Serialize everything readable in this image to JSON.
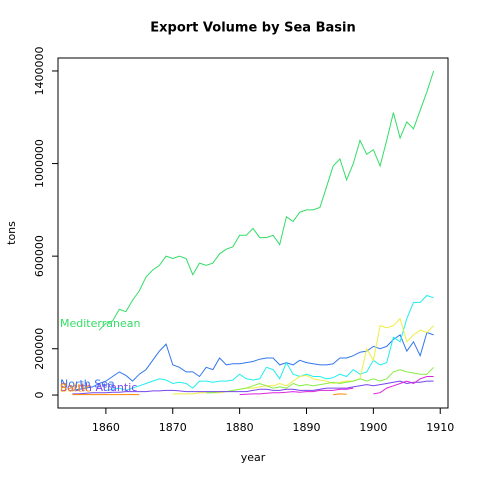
{
  "chart_data": {
    "type": "line",
    "title": "Export Volume by Sea Basin",
    "x_label": "year",
    "y_label": "tons",
    "x": [
      1855,
      1856,
      1857,
      1858,
      1859,
      1860,
      1861,
      1862,
      1863,
      1864,
      1865,
      1866,
      1867,
      1868,
      1869,
      1870,
      1871,
      1872,
      1873,
      1874,
      1875,
      1876,
      1877,
      1878,
      1879,
      1880,
      1881,
      1882,
      1883,
      1884,
      1885,
      1886,
      1887,
      1888,
      1889,
      1890,
      1891,
      1892,
      1893,
      1894,
      1895,
      1896,
      1897,
      1898,
      1899,
      1900,
      1901,
      1902,
      1903,
      1904,
      1905,
      1906,
      1907,
      1908,
      1909
    ],
    "series": [
      {
        "name": "Mediterranean",
        "color": "#33dd66",
        "values": [
          null,
          null,
          null,
          null,
          280000,
          310000,
          320000,
          370000,
          360000,
          410000,
          450000,
          510000,
          540000,
          560000,
          600000,
          590000,
          600000,
          590000,
          520000,
          570000,
          560000,
          570000,
          610000,
          630000,
          640000,
          690000,
          690000,
          720000,
          680000,
          680000,
          690000,
          650000,
          770000,
          750000,
          790000,
          800000,
          800000,
          810000,
          900000,
          990000,
          1020000,
          930000,
          1000000,
          1100000,
          1040000,
          1060000,
          990000,
          1100000,
          1220000,
          1110000,
          1180000,
          1150000,
          1230000,
          1310000,
          1400000
        ]
      },
      {
        "name": "North Sea",
        "color": "#3377ee",
        "values": [
          20000,
          25000,
          30000,
          35000,
          50000,
          60000,
          80000,
          100000,
          85000,
          60000,
          90000,
          110000,
          150000,
          190000,
          220000,
          130000,
          120000,
          100000,
          100000,
          80000,
          120000,
          110000,
          160000,
          130000,
          135000,
          135000,
          140000,
          145000,
          155000,
          160000,
          160000,
          130000,
          140000,
          130000,
          150000,
          140000,
          135000,
          130000,
          130000,
          135000,
          160000,
          160000,
          170000,
          185000,
          190000,
          210000,
          200000,
          210000,
          240000,
          260000,
          190000,
          230000,
          170000,
          270000,
          260000
        ]
      },
      {
        "color": "#22eeee",
        "values": [
          null,
          null,
          null,
          null,
          null,
          20000,
          25000,
          30000,
          20000,
          30000,
          40000,
          50000,
          60000,
          70000,
          65000,
          50000,
          55000,
          50000,
          30000,
          60000,
          60000,
          55000,
          60000,
          60000,
          65000,
          90000,
          70000,
          65000,
          70000,
          120000,
          110000,
          70000,
          140000,
          90000,
          80000,
          90000,
          80000,
          80000,
          70000,
          75000,
          90000,
          80000,
          110000,
          90000,
          100000,
          150000,
          130000,
          140000,
          250000,
          230000,
          330000,
          400000,
          400000,
          430000,
          420000
        ]
      },
      {
        "color": "#eeee44",
        "values": [
          null,
          null,
          null,
          null,
          null,
          null,
          null,
          null,
          null,
          null,
          null,
          null,
          null,
          null,
          null,
          5000,
          5000,
          5000,
          5000,
          10000,
          10000,
          10000,
          10000,
          15000,
          20000,
          25000,
          30000,
          30000,
          35000,
          40000,
          40000,
          50000,
          40000,
          60000,
          80000,
          85000,
          70000,
          65000,
          60000,
          50000,
          55000,
          60000,
          60000,
          70000,
          200000,
          150000,
          300000,
          290000,
          300000,
          330000,
          230000,
          260000,
          280000,
          270000,
          300000
        ]
      },
      {
        "color": "#88ee44",
        "values": [
          null,
          null,
          null,
          null,
          null,
          null,
          null,
          null,
          null,
          null,
          null,
          null,
          null,
          null,
          null,
          null,
          null,
          null,
          null,
          null,
          10000,
          10000,
          15000,
          15000,
          20000,
          25000,
          30000,
          40000,
          50000,
          40000,
          30000,
          35000,
          30000,
          50000,
          40000,
          45000,
          40000,
          45000,
          50000,
          55000,
          50000,
          55000,
          60000,
          70000,
          60000,
          70000,
          60000,
          70000,
          100000,
          110000,
          100000,
          95000,
          90000,
          90000,
          120000
        ]
      },
      {
        "name": "South Atlantic",
        "color": "#7744ee",
        "values": [
          5000,
          5000,
          8000,
          10000,
          10000,
          10000,
          12000,
          12000,
          15000,
          15000,
          15000,
          15000,
          18000,
          18000,
          20000,
          20000,
          18000,
          15000,
          15000,
          15000,
          15000,
          15000,
          15000,
          15000,
          15000,
          15000,
          15000,
          20000,
          25000,
          25000,
          20000,
          20000,
          25000,
          25000,
          20000,
          20000,
          20000,
          25000,
          30000,
          30000,
          30000,
          30000,
          35000,
          40000,
          45000,
          40000,
          45000,
          50000,
          55000,
          60000,
          50000,
          55000,
          55000,
          60000,
          60000
        ]
      },
      {
        "name": "Baltic",
        "color": "#ff8800",
        "values": [
          2000,
          2000,
          2000,
          2000,
          2000,
          2000,
          2000,
          2000,
          2000,
          2000,
          2000,
          null,
          null,
          null,
          null,
          null,
          null,
          null,
          null,
          null,
          null,
          null,
          null,
          null,
          null,
          null,
          null,
          null,
          null,
          null,
          null,
          null,
          null,
          null,
          null,
          null,
          null,
          null,
          null,
          2000,
          5000,
          3000,
          null,
          null,
          null,
          null,
          null,
          null,
          null,
          null,
          null,
          null,
          null,
          null,
          null
        ]
      },
      {
        "color": "#dd22dd",
        "values": [
          null,
          null,
          null,
          null,
          null,
          null,
          null,
          null,
          null,
          null,
          null,
          null,
          null,
          null,
          null,
          null,
          null,
          null,
          null,
          null,
          null,
          null,
          null,
          null,
          null,
          2000,
          3000,
          5000,
          5000,
          8000,
          10000,
          10000,
          12000,
          15000,
          12000,
          15000,
          15000,
          20000,
          20000,
          20000,
          25000,
          25000,
          30000,
          null,
          null,
          5000,
          10000,
          30000,
          40000,
          50000,
          60000,
          50000,
          70000,
          80000,
          80000
        ]
      }
    ],
    "xlim": [
      1852.84,
      1911.16
    ],
    "ylim": [
      -56000,
      1456000
    ],
    "xticks": [
      1860,
      1870,
      1880,
      1890,
      1900,
      1910
    ],
    "yticks": [
      0,
      200000,
      600000,
      1000000,
      1400000
    ]
  }
}
